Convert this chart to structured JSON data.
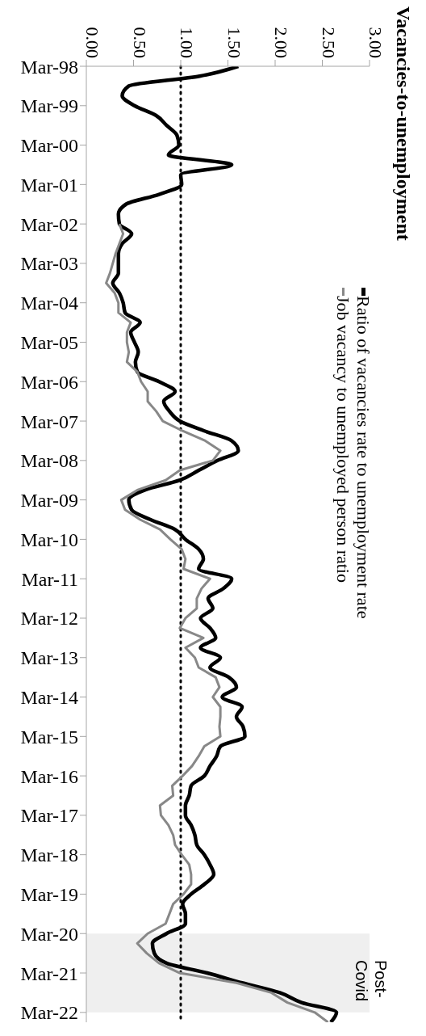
{
  "chart_data": {
    "type": "line",
    "title": "Vacancies-to-unemployment",
    "orientation": "horizontal",
    "categories": [
      "Mar-98",
      null,
      null,
      null,
      "Mar-99",
      null,
      null,
      null,
      "Mar-00",
      null,
      null,
      null,
      "Mar-01",
      null,
      null,
      null,
      "Mar-02",
      null,
      null,
      null,
      "Mar-03",
      null,
      null,
      null,
      "Mar-04",
      null,
      null,
      null,
      "Mar-05",
      null,
      null,
      null,
      "Mar-06",
      null,
      null,
      null,
      "Mar-07",
      null,
      null,
      null,
      "Mar-08",
      null,
      null,
      null,
      "Mar-09",
      null,
      null,
      null,
      "Mar-10",
      null,
      null,
      null,
      "Mar-11",
      null,
      null,
      null,
      "Mar-12",
      null,
      null,
      null,
      "Mar-13",
      null,
      null,
      null,
      "Mar-14",
      null,
      null,
      null,
      "Mar-15",
      null,
      null,
      null,
      "Mar-16",
      null,
      null,
      null,
      "Mar-17",
      null,
      null,
      null,
      "Mar-18",
      null,
      null,
      null,
      "Mar-19",
      null,
      null,
      null,
      "Mar-20",
      null,
      null,
      null,
      "Mar-21",
      null,
      null,
      null,
      "Mar-22",
      null
    ],
    "series": [
      {
        "name": "Ratio of vacancies rate to unemployment rate",
        "color": "#000000",
        "values": [
          1.61,
          1.2,
          0.45,
          0.38,
          0.51,
          0.74,
          0.85,
          0.96,
          0.98,
          0.87,
          1.54,
          1.0,
          1.01,
          0.77,
          0.42,
          0.34,
          0.35,
          0.48,
          0.38,
          0.34,
          0.34,
          0.34,
          0.28,
          0.35,
          0.39,
          0.41,
          0.57,
          0.47,
          0.51,
          0.55,
          0.52,
          0.54,
          0.77,
          0.94,
          0.82,
          0.88,
          0.99,
          1.25,
          1.54,
          1.61,
          1.39,
          1.19,
          0.99,
          0.62,
          0.45,
          0.48,
          0.68,
          0.94,
          1.05,
          1.19,
          1.24,
          1.19,
          1.54,
          1.45,
          1.29,
          1.34,
          1.21,
          1.31,
          1.37,
          1.21,
          1.42,
          1.31,
          1.51,
          1.59,
          1.44,
          1.65,
          1.59,
          1.66,
          1.68,
          1.42,
          1.38,
          1.31,
          1.25,
          1.11,
          1.09,
          1.05,
          1.05,
          1.11,
          1.15,
          1.17,
          1.25,
          1.31,
          1.35,
          1.25,
          1.11,
          1.02,
          1.05,
          1.05,
          0.85,
          0.7,
          0.72,
          0.85,
          1.28,
          1.65,
          2.05,
          2.28,
          2.65,
          2.59
        ]
      },
      {
        "name": "Job vacancy to unemployed person ratio",
        "color": "#888888",
        "values": [
          null,
          null,
          null,
          null,
          null,
          null,
          null,
          null,
          null,
          null,
          null,
          null,
          null,
          null,
          null,
          null,
          0.35,
          0.39,
          0.35,
          0.31,
          0.28,
          0.25,
          0.21,
          0.3,
          0.34,
          0.34,
          0.47,
          0.43,
          0.43,
          0.45,
          0.43,
          0.54,
          0.58,
          0.65,
          0.65,
          0.74,
          0.81,
          1.02,
          1.26,
          1.42,
          1.34,
          0.99,
          0.84,
          0.54,
          0.37,
          0.41,
          0.57,
          0.78,
          0.89,
          1.01,
          1.05,
          1.03,
          1.31,
          1.22,
          1.17,
          1.17,
          1.05,
          0.99,
          1.24,
          1.05,
          1.15,
          1.19,
          1.37,
          1.41,
          1.34,
          1.42,
          1.42,
          1.41,
          1.42,
          1.25,
          1.19,
          1.12,
          1.02,
          0.91,
          0.92,
          0.78,
          0.79,
          0.87,
          0.92,
          0.94,
          1.01,
          1.09,
          1.11,
          1.11,
          1.03,
          0.92,
          0.88,
          0.84,
          0.65,
          0.54,
          0.64,
          0.77,
          0.99,
          1.59,
          1.96,
          2.13,
          2.42,
          2.56
        ]
      }
    ],
    "xlim": [
      0,
      3
    ],
    "xticks": [
      {
        "value": 0,
        "label": "0.00"
      },
      {
        "value": 0.5,
        "label": "0.50"
      },
      {
        "value": 1,
        "label": "1.00"
      },
      {
        "value": 1.5,
        "label": "1.50"
      },
      {
        "value": 2,
        "label": "2.00"
      },
      {
        "value": 2.5,
        "label": "2.50"
      },
      {
        "value": 3,
        "label": "3.00"
      }
    ],
    "ref_lines": [
      {
        "axis": "x",
        "value": 1,
        "color": "#000000",
        "line_style": "dotted"
      }
    ],
    "bands": [
      {
        "axis": "y",
        "from": "Mar-20",
        "to": "Mar-22",
        "label": "Post-Covid",
        "color": "#efefef"
      }
    ],
    "grid": false,
    "legend": "top",
    "marker": "none"
  }
}
